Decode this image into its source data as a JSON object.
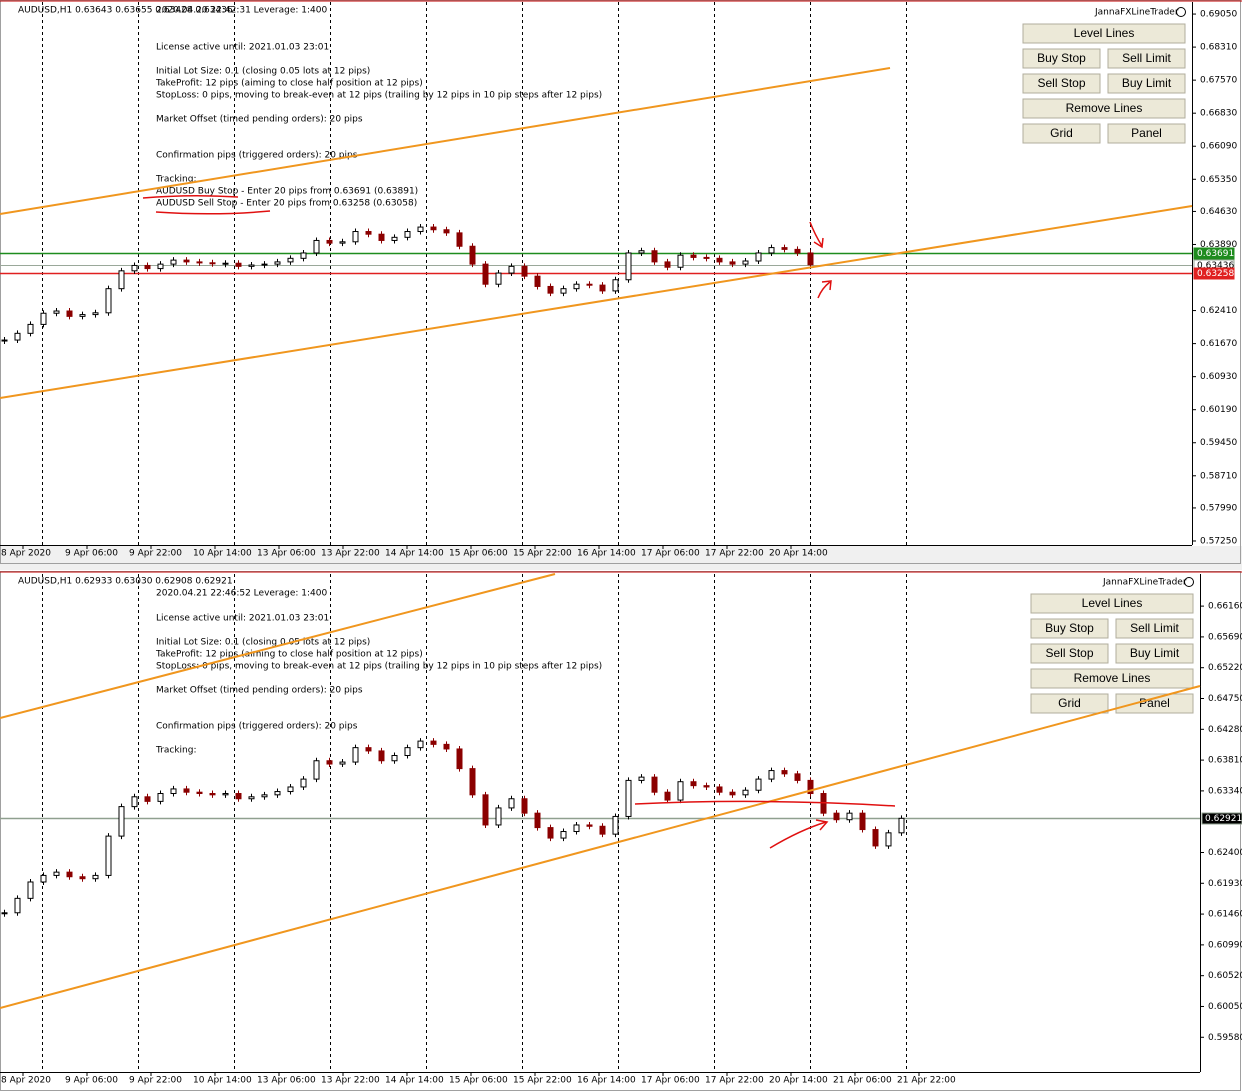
{
  "panels": [
    {
      "header": "AUDUSD,H1  0.63643 0.63655 0.63428 0.63436",
      "expert": "JannaFXLineTrader",
      "info": [
        "2020.04.20 22:42:31    Leverage: 1:400",
        "License active until: 2021.01.03 23:01",
        "Initial Lot Size: 0.1  (closing 0.05 lots at 12 pips)",
        "TakeProfit: 12 pips  (aiming to close half position at 12 pips)",
        "StopLoss: 0 pips, moving to break-even at 12 pips  (trailing by 12 pips in 10 pip steps after 12 pips)",
        "Market Offset (timed pending orders): 20 pips",
        "Confirmation pips (triggered orders): 20 pips",
        "Tracking:",
        "AUDUSD Buy Stop - Enter 20 pips from 0.63691  (0.63891)",
        "AUDUSD Sell Stop - Enter 20 pips from 0.63258  (0.63058)"
      ],
      "buttons": [
        "Level Lines",
        "Buy Stop",
        "Sell Limit",
        "Sell Stop",
        "Buy Limit",
        "Remove Lines",
        "Grid",
        "Panel"
      ],
      "ylim": [
        0.5716,
        0.6932
      ],
      "yticks": [
        {
          "value": 0.6905,
          "label": "0.69050"
        },
        {
          "value": 0.6831,
          "label": "0.68310"
        },
        {
          "value": 0.6757,
          "label": "0.67570"
        },
        {
          "value": 0.6683,
          "label": "0.66830"
        },
        {
          "value": 0.6609,
          "label": "0.66090"
        },
        {
          "value": 0.6535,
          "label": "0.65350"
        },
        {
          "value": 0.6463,
          "label": "0.64630"
        },
        {
          "value": 0.6389,
          "label": "0.63890"
        },
        {
          "value": 0.6241,
          "label": "0.62410"
        },
        {
          "value": 0.6167,
          "label": "0.61670"
        },
        {
          "value": 0.6093,
          "label": "0.60930"
        },
        {
          "value": 0.6019,
          "label": "0.60190"
        },
        {
          "value": 0.5945,
          "label": "0.59450"
        },
        {
          "value": 0.5871,
          "label": "0.58710"
        },
        {
          "value": 0.5799,
          "label": "0.57990"
        },
        {
          "value": 0.5725,
          "label": "0.57250"
        }
      ],
      "xticks": [
        "8 Apr 2020",
        "9 Apr 06:00",
        "9 Apr 22:00",
        "10 Apr 14:00",
        "13 Apr 06:00",
        "13 Apr 22:00",
        "14 Apr 14:00",
        "15 Apr 06:00",
        "15 Apr 22:00",
        "16 Apr 14:00",
        "17 Apr 06:00",
        "17 Apr 22:00",
        "20 Apr 14:00"
      ],
      "closes": [
        0.6175,
        0.619,
        0.621,
        0.6235,
        0.624,
        0.6228,
        0.6232,
        0.6236,
        0.629,
        0.633,
        0.6342,
        0.6335,
        0.6345,
        0.6354,
        0.635,
        0.6348,
        0.6346,
        0.6347,
        0.634,
        0.6343,
        0.6345,
        0.635,
        0.6358,
        0.637,
        0.6398,
        0.6392,
        0.6395,
        0.6418,
        0.6412,
        0.6398,
        0.6405,
        0.6418,
        0.6428,
        0.6422,
        0.6415,
        0.6385,
        0.6345,
        0.63,
        0.6325,
        0.634,
        0.6318,
        0.6295,
        0.628,
        0.629,
        0.63,
        0.6298,
        0.6285,
        0.631,
        0.637,
        0.6375,
        0.635,
        0.6338,
        0.6365,
        0.636,
        0.6358,
        0.635,
        0.6345,
        0.6352,
        0.637,
        0.6382,
        0.6378,
        0.637,
        0.63436
      ],
      "levels": [
        {
          "value": 0.63691,
          "color": "#1e8c1e"
        },
        {
          "value": 0.63436,
          "color": "#9aa89a"
        },
        {
          "value": 0.63258,
          "color": "#e02020"
        }
      ]
    },
    {
      "header": "AUDUSD,H1  0.62933 0.63030 0.62908 0.62921",
      "expert": "JannaFXLineTrader",
      "info": [
        "2020.04.21 22:46:52    Leverage: 1:400",
        "License active until: 2021.01.03 23:01",
        "Initial Lot Size: 0.1  (closing 0.05 lots at 12 pips)",
        "TakeProfit: 12 pips  (aiming to close half position at 12 pips)",
        "StopLoss: 0 pips, moving to break-even at 12 pips  (trailing by 12 pips in 10 pip steps after 12 pips)",
        "Market Offset (timed pending orders): 20 pips",
        "Confirmation pips (triggered orders): 20 pips",
        "Tracking:"
      ],
      "buttons": [
        "Level Lines",
        "Buy Stop",
        "Sell Limit",
        "Sell Stop",
        "Buy Limit",
        "Remove Lines",
        "Grid",
        "Panel"
      ],
      "ylim": [
        0.5905,
        0.6665
      ],
      "yticks": [
        {
          "value": 0.6616,
          "label": "0.66160"
        },
        {
          "value": 0.6569,
          "label": "0.65690"
        },
        {
          "value": 0.6522,
          "label": "0.65220"
        },
        {
          "value": 0.6475,
          "label": "0.64750"
        },
        {
          "value": 0.6428,
          "label": "0.64280"
        },
        {
          "value": 0.6381,
          "label": "0.63810"
        },
        {
          "value": 0.6334,
          "label": "0.63340"
        },
        {
          "value": 0.624,
          "label": "0.62400"
        },
        {
          "value": 0.6193,
          "label": "0.61930"
        },
        {
          "value": 0.6146,
          "label": "0.61460"
        },
        {
          "value": 0.6099,
          "label": "0.60990"
        },
        {
          "value": 0.6052,
          "label": "0.60520"
        },
        {
          "value": 0.6005,
          "label": "0.60050"
        },
        {
          "value": 0.5958,
          "label": "0.59580"
        }
      ],
      "xticks": [
        "8 Apr 2020",
        "9 Apr 06:00",
        "9 Apr 22:00",
        "10 Apr 14:00",
        "13 Apr 06:00",
        "13 Apr 22:00",
        "14 Apr 14:00",
        "15 Apr 06:00",
        "15 Apr 22:00",
        "16 Apr 14:00",
        "17 Apr 06:00",
        "17 Apr 22:00",
        "20 Apr 14:00",
        "21 Apr 06:00",
        "21 Apr 22:00"
      ],
      "closes": [
        0.6148,
        0.617,
        0.6195,
        0.6205,
        0.621,
        0.6203,
        0.62,
        0.6205,
        0.6265,
        0.631,
        0.6325,
        0.6318,
        0.633,
        0.6337,
        0.6332,
        0.633,
        0.6328,
        0.633,
        0.6322,
        0.6325,
        0.6328,
        0.6333,
        0.634,
        0.6352,
        0.638,
        0.6375,
        0.6378,
        0.64,
        0.6395,
        0.638,
        0.6388,
        0.64,
        0.641,
        0.6405,
        0.6398,
        0.6368,
        0.6328,
        0.6282,
        0.6308,
        0.6322,
        0.63,
        0.6278,
        0.6262,
        0.6272,
        0.6282,
        0.628,
        0.6268,
        0.6295,
        0.635,
        0.6355,
        0.6332,
        0.632,
        0.6348,
        0.6342,
        0.634,
        0.6332,
        0.6328,
        0.6335,
        0.6352,
        0.6365,
        0.636,
        0.635,
        0.633,
        0.63,
        0.629,
        0.63,
        0.6275,
        0.625,
        0.627,
        0.62921
      ],
      "levels": [
        {
          "value": 0.62921,
          "color": "#8fa08f"
        }
      ]
    }
  ]
}
